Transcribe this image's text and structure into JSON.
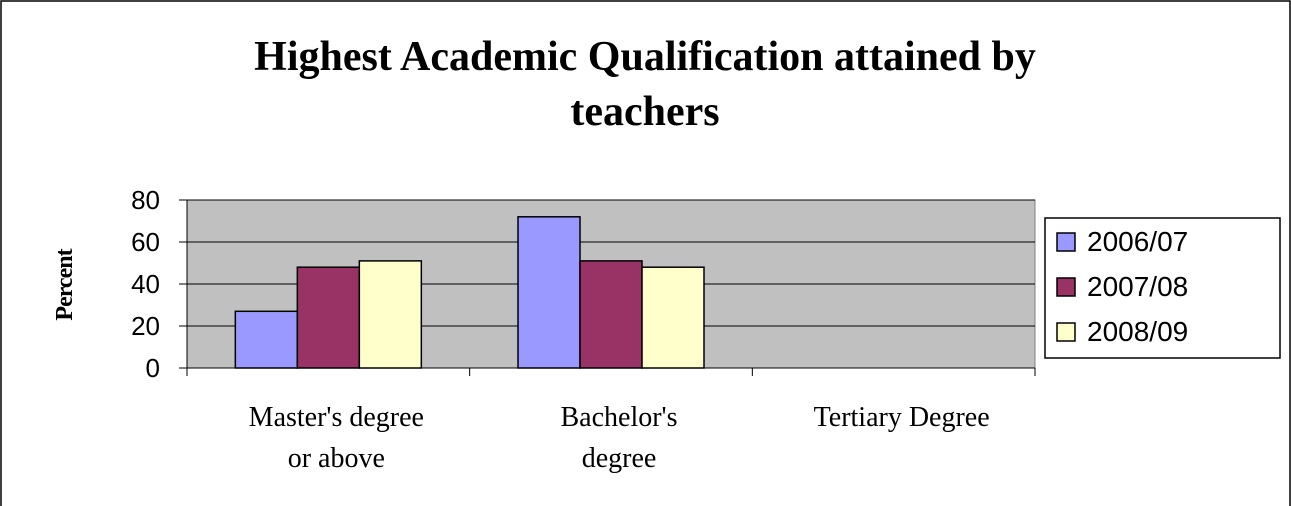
{
  "chart_data": {
    "type": "bar",
    "title": "Highest Academic Qualification attained by\nteachers",
    "y_label": "Percent",
    "categories": [
      "Master's degree\nor above",
      "Bachelor's\ndegree",
      "Tertiary Degree"
    ],
    "series": [
      {
        "name": "2006/07",
        "color": "#9999ff",
        "values": [
          27,
          72,
          0
        ]
      },
      {
        "name": "2007/08",
        "color": "#993366",
        "values": [
          48,
          51,
          0
        ]
      },
      {
        "name": "2008/09",
        "color": "#ffffcc",
        "values": [
          51,
          48,
          0
        ]
      }
    ],
    "ylim": [
      0,
      80
    ],
    "yticks": [
      0,
      20,
      40,
      60,
      80
    ],
    "grid": true,
    "legend": "right"
  }
}
